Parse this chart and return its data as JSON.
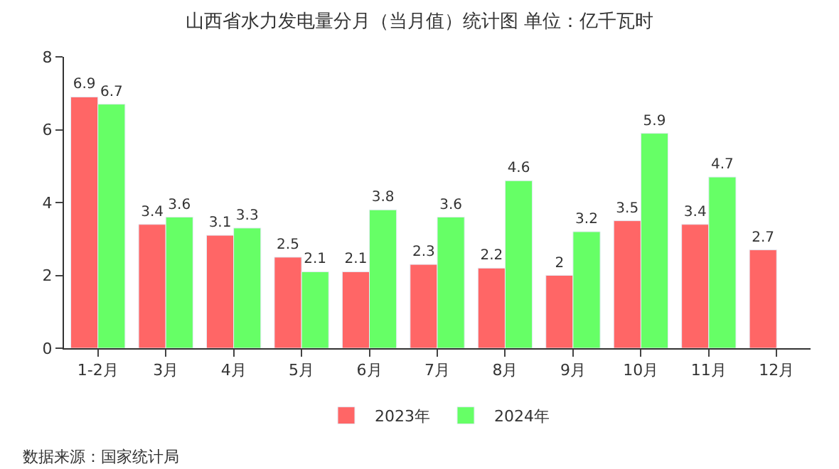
{
  "chart_data": {
    "type": "bar",
    "title": "山西省水力发电量分月（当月值）统计图 单位：亿千瓦时",
    "categories": [
      "1-2月",
      "3月",
      "4月",
      "5月",
      "6月",
      "7月",
      "8月",
      "9月",
      "10月",
      "11月",
      "12月"
    ],
    "series": [
      {
        "name": "2023年",
        "color": "#ff6666",
        "values": [
          6.9,
          3.4,
          3.1,
          2.5,
          2.1,
          2.3,
          2.2,
          2,
          3.5,
          3.4,
          2.7
        ]
      },
      {
        "name": "2024年",
        "color": "#66ff66",
        "values": [
          6.7,
          3.6,
          3.3,
          2.1,
          3.8,
          3.6,
          4.6,
          3.2,
          5.9,
          4.7,
          null
        ]
      }
    ],
    "ylim": [
      0,
      8
    ],
    "yticks": [
      0,
      2,
      4,
      6,
      8
    ],
    "legend": "bottom",
    "data_labels": true,
    "annotations": [
      "数据来源：国家统计局"
    ]
  }
}
